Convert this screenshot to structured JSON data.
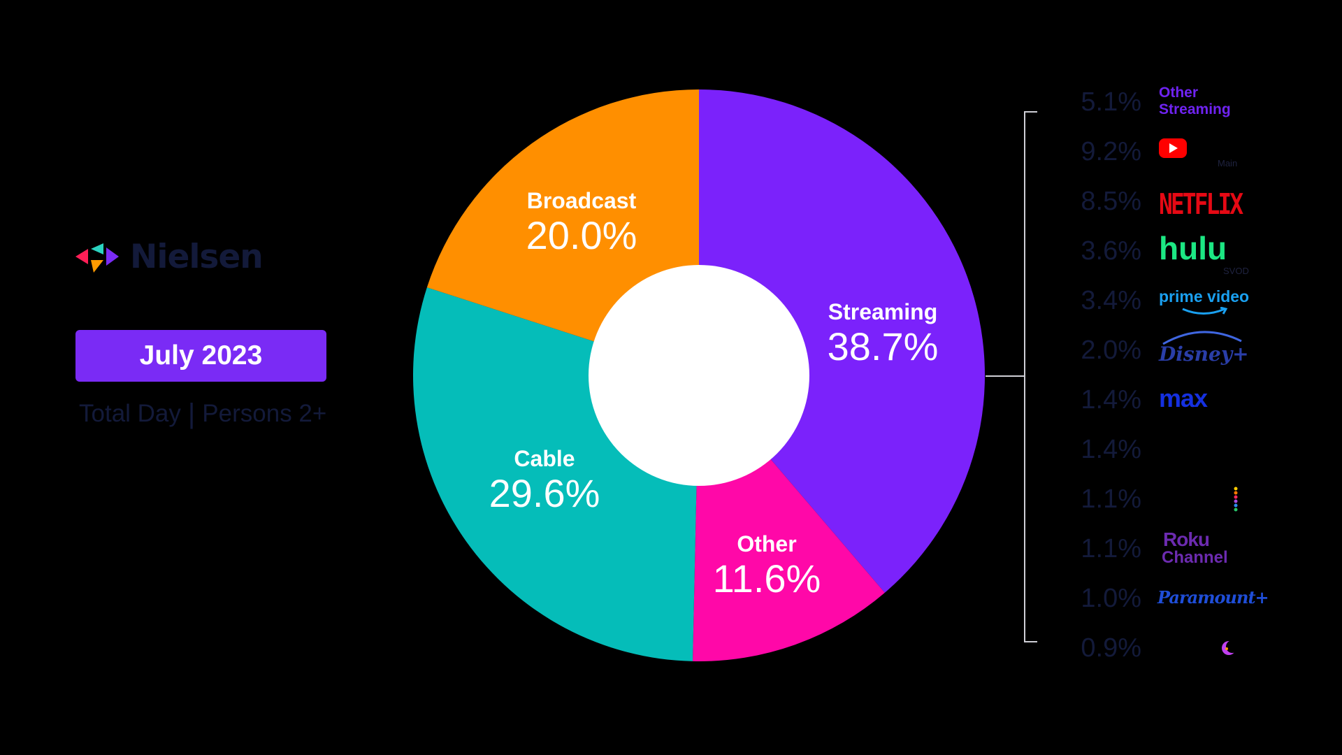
{
  "brand": {
    "name": "Nielsen"
  },
  "badge": {
    "label": "July 2023"
  },
  "subtitle": {
    "left": "Total Day",
    "separator": "|",
    "right": "Persons 2+"
  },
  "colors": {
    "streaming": "#7b22fb",
    "other": "#ff08a8",
    "cable": "#05bdb9",
    "broadcast": "#ff8f00",
    "hole": "#ffffff",
    "text_dark": "#131a3a",
    "bracket": "#cfcfd6"
  },
  "chart_data": {
    "type": "pie",
    "donut": true,
    "title": "",
    "start_angle_deg": 0,
    "direction": "clockwise",
    "slices": [
      {
        "name": "Streaming",
        "value": 38.7,
        "label": "38.7%",
        "color": "#7b22fb"
      },
      {
        "name": "Other",
        "value": 11.6,
        "label": "11.6%",
        "color": "#ff08a8"
      },
      {
        "name": "Cable",
        "value": 29.6,
        "label": "29.6%",
        "color": "#05bdb9"
      },
      {
        "name": "Broadcast",
        "value": 20.0,
        "label": "20.0%",
        "color": "#ff8f00"
      }
    ],
    "streaming_breakdown": [
      {
        "value": 5.1,
        "label": "5.1%",
        "logo": "Other Streaming",
        "logo_line1": "Other",
        "logo_line2": "Streaming",
        "icon": "other-streaming-text",
        "color": "#6f23f2"
      },
      {
        "value": 9.2,
        "label": "9.2%",
        "logo": "YouTube Main",
        "caption": "Main",
        "icon": "youtube-icon",
        "color": "#ff0000"
      },
      {
        "value": 8.5,
        "label": "8.5%",
        "logo": "NETFLIX",
        "icon": "netflix-logo",
        "color": "#e50914"
      },
      {
        "value": 3.6,
        "label": "3.6%",
        "logo": "hulu SVOD",
        "logo_main": "hulu",
        "caption": "SVOD",
        "icon": "hulu-logo",
        "color": "#1ce783"
      },
      {
        "value": 3.4,
        "label": "3.4%",
        "logo": "prime video",
        "icon": "prime-video-logo",
        "color": "#1aa0f0"
      },
      {
        "value": 2.0,
        "label": "2.0%",
        "logo": "Disney+",
        "icon": "disney-plus-logo",
        "color": "#2a3ea8"
      },
      {
        "value": 1.4,
        "label": "1.4%",
        "logo": "max",
        "icon": "max-logo",
        "color": "#1530e0"
      },
      {
        "value": 1.4,
        "label": "1.4%",
        "logo": "",
        "icon": "blank-logo",
        "color": "#000000"
      },
      {
        "value": 1.1,
        "label": "1.1%",
        "logo": "",
        "icon": "peacock-dots-icon",
        "color": "#ffcc00"
      },
      {
        "value": 1.1,
        "label": "1.1%",
        "logo": "Roku Channel",
        "logo_line1": "Roku",
        "logo_line2": "Channel",
        "icon": "roku-channel-logo",
        "color": "#6c2bb0"
      },
      {
        "value": 1.0,
        "label": "1.0%",
        "logo": "Paramount+",
        "icon": "paramount-plus-logo",
        "color": "#1f4ed8"
      },
      {
        "value": 0.9,
        "label": "0.9%",
        "logo": "",
        "icon": "crescent-moon-icon",
        "color": "#c040f0"
      }
    ]
  }
}
